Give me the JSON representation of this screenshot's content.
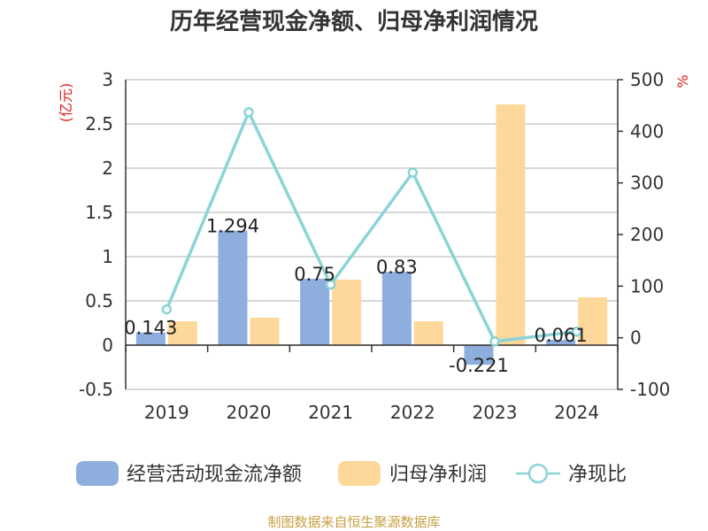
{
  "chart_data": {
    "type": "bar",
    "title": "历年经营现金净额、归母净利润情况",
    "categories": [
      "2019",
      "2020",
      "2021",
      "2022",
      "2023",
      "2024"
    ],
    "series": [
      {
        "name": "经营活动现金流净额",
        "type": "bar",
        "axis": "left",
        "color": "#8eaede",
        "values": [
          0.143,
          1.294,
          0.75,
          0.83,
          -0.221,
          0.061
        ],
        "labels": [
          "0.143",
          "1.294",
          "0.75",
          "0.83",
          "-0.221",
          "0.061"
        ]
      },
      {
        "name": "归母净利润",
        "type": "bar",
        "axis": "left",
        "color": "#fdd89a",
        "values": [
          0.27,
          0.31,
          0.74,
          0.27,
          2.72,
          0.54
        ]
      },
      {
        "name": "净现比",
        "type": "line",
        "axis": "right",
        "color": "#8ad4d8",
        "values": [
          55,
          437,
          103,
          320,
          -7,
          12
        ]
      }
    ],
    "y_left": {
      "label": "(亿元)",
      "min": -0.5,
      "max": 3,
      "ticks": [
        "3",
        "2.5",
        "2",
        "1.5",
        "1",
        "0.5",
        "0",
        "-0.5"
      ],
      "tick_values": [
        3,
        2.5,
        2,
        1.5,
        1,
        0.5,
        0,
        -0.5
      ]
    },
    "y_right": {
      "label": "%",
      "min": -100,
      "max": 500,
      "ticks": [
        "500",
        "400",
        "300",
        "200",
        "100",
        "0",
        "-100"
      ],
      "tick_values": [
        500,
        400,
        300,
        200,
        100,
        0,
        -100
      ]
    },
    "grid": true,
    "legend_position": "bottom",
    "source": "制图数据来自恒生聚源数据库"
  }
}
